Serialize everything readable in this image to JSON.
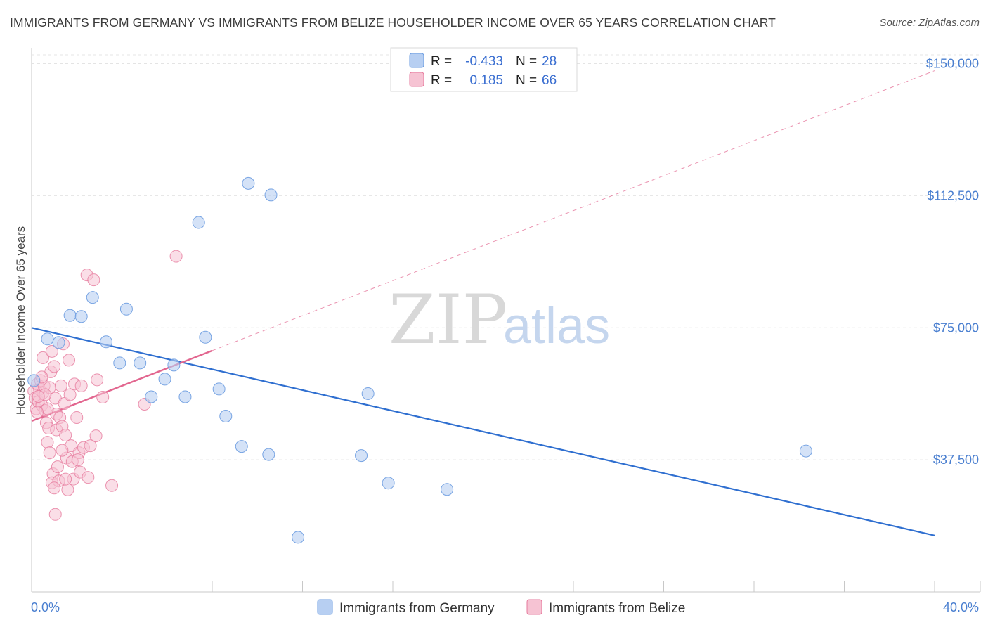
{
  "title": "IMMIGRANTS FROM GERMANY VS IMMIGRANTS FROM BELIZE HOUSEHOLDER INCOME OVER 65 YEARS CORRELATION CHART",
  "source": "Source: ZipAtlas.com",
  "watermark": {
    "zip": "ZIP",
    "atlas": "atlas"
  },
  "colors": {
    "germany": "#6a9be0",
    "germany_fill": "#b7cff2",
    "belize": "#e6799c",
    "belize_fill": "#f6c3d3",
    "trend_germany": "#2f6fd0",
    "trend_belize": "#e2668f"
  },
  "legend": {
    "germany": {
      "r_label": "R =",
      "r_value": "-0.433",
      "n_label": "N =",
      "n_value": "28"
    },
    "belize": {
      "r_label": "R =",
      "r_value": "0.185",
      "n_label": "N =",
      "n_value": "66"
    }
  },
  "chart_data": {
    "type": "scatter",
    "title": "IMMIGRANTS FROM GERMANY VS IMMIGRANTS FROM BELIZE HOUSEHOLDER INCOME OVER 65 YEARS CORRELATION CHART",
    "xlabel": "",
    "ylabel": "Householder Income Over 65 years",
    "xlim": [
      0,
      40
    ],
    "ylim": [
      0,
      152500
    ],
    "x_tick_labels": [
      "0.0%",
      "40.0%"
    ],
    "y_ticks": [
      {
        "value": 37500,
        "label": "$37,500"
      },
      {
        "value": 75000,
        "label": "$75,000"
      },
      {
        "value": 112500,
        "label": "$112,500"
      },
      {
        "value": 150000,
        "label": "$150,000"
      }
    ],
    "series": [
      {
        "name": "Immigrants from Germany",
        "points": [
          [
            0.1,
            60000
          ],
          [
            0.7,
            71800
          ],
          [
            1.2,
            70800
          ],
          [
            1.7,
            78500
          ],
          [
            2.2,
            78200
          ],
          [
            2.7,
            83600
          ],
          [
            3.3,
            71000
          ],
          [
            3.9,
            65000
          ],
          [
            4.2,
            80300
          ],
          [
            4.8,
            65000
          ],
          [
            5.3,
            55400
          ],
          [
            5.9,
            60400
          ],
          [
            6.3,
            64400
          ],
          [
            6.8,
            55400
          ],
          [
            7.4,
            104900
          ],
          [
            7.7,
            72300
          ],
          [
            8.3,
            57600
          ],
          [
            8.6,
            49900
          ],
          [
            9.3,
            41300
          ],
          [
            9.6,
            116000
          ],
          [
            10.5,
            39000
          ],
          [
            10.6,
            112700
          ],
          [
            11.8,
            15500
          ],
          [
            14.6,
            38700
          ],
          [
            14.9,
            56300
          ],
          [
            15.8,
            30900
          ],
          [
            18.4,
            29100
          ],
          [
            34.3,
            40000
          ]
        ],
        "trend": {
          "x": [
            0,
            40
          ],
          "y": [
            75000,
            16000
          ]
        }
      },
      {
        "name": "Immigrants from Belize",
        "points": [
          [
            0.1,
            57000
          ],
          [
            0.15,
            55000
          ],
          [
            0.2,
            52000
          ],
          [
            0.25,
            59000
          ],
          [
            0.3,
            54000
          ],
          [
            0.35,
            57500
          ],
          [
            0.4,
            60000
          ],
          [
            0.45,
            53000
          ],
          [
            0.5,
            56500
          ],
          [
            0.55,
            58500
          ],
          [
            0.5,
            66500
          ],
          [
            0.6,
            51500
          ],
          [
            0.65,
            48000
          ],
          [
            0.7,
            42500
          ],
          [
            0.75,
            46500
          ],
          [
            0.8,
            39500
          ],
          [
            0.85,
            62500
          ],
          [
            0.9,
            68300
          ],
          [
            0.95,
            33500
          ],
          [
            0.9,
            31000
          ],
          [
            1.0,
            64000
          ],
          [
            1.05,
            55000
          ],
          [
            1.1,
            50500
          ],
          [
            1.1,
            46000
          ],
          [
            1.15,
            35500
          ],
          [
            1.2,
            31500
          ],
          [
            1.25,
            49500
          ],
          [
            1.3,
            58500
          ],
          [
            1.35,
            47000
          ],
          [
            1.4,
            70400
          ],
          [
            1.45,
            53500
          ],
          [
            1.5,
            44500
          ],
          [
            1.55,
            38000
          ],
          [
            1.6,
            29000
          ],
          [
            1.65,
            65800
          ],
          [
            1.7,
            56000
          ],
          [
            1.75,
            41500
          ],
          [
            1.8,
            37000
          ],
          [
            1.85,
            32000
          ],
          [
            1.9,
            59000
          ],
          [
            2.0,
            49500
          ],
          [
            2.1,
            39500
          ],
          [
            2.15,
            34000
          ],
          [
            2.2,
            58500
          ],
          [
            2.3,
            41000
          ],
          [
            2.45,
            90000
          ],
          [
            2.5,
            32500
          ],
          [
            2.6,
            41500
          ],
          [
            2.75,
            88600
          ],
          [
            2.85,
            44300
          ],
          [
            2.9,
            60200
          ],
          [
            3.15,
            55300
          ],
          [
            3.55,
            30200
          ],
          [
            1.05,
            22000
          ],
          [
            0.8,
            58000
          ],
          [
            0.6,
            56000
          ],
          [
            5.0,
            53300
          ],
          [
            6.4,
            95300
          ],
          [
            1.35,
            40200
          ],
          [
            0.45,
            61000
          ],
          [
            1.5,
            32000
          ],
          [
            0.3,
            55500
          ],
          [
            0.7,
            52000
          ],
          [
            2.05,
            37500
          ],
          [
            0.25,
            51000
          ],
          [
            1.0,
            29500
          ]
        ],
        "trend": {
          "x": [
            0,
            8
          ],
          "y": [
            48500,
            68500
          ]
        },
        "trend_extension": {
          "x": [
            8,
            40
          ],
          "y": [
            68500,
            148000
          ]
        }
      }
    ],
    "legend": [
      "Immigrants from Germany",
      "Immigrants from Belize"
    ],
    "legend_position": "bottom",
    "grid": true
  }
}
